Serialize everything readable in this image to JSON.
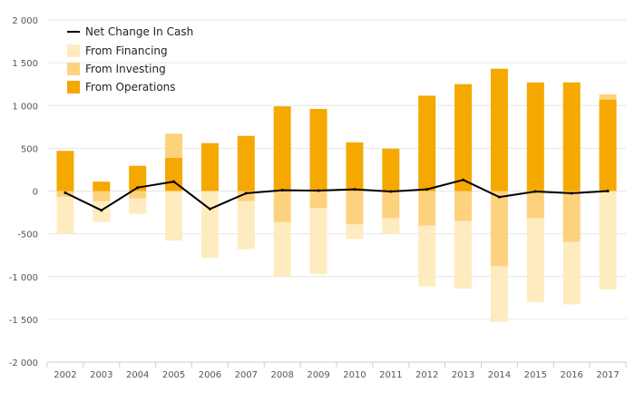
{
  "chart_data": {
    "type": "bar",
    "categories": [
      "2002",
      "2003",
      "2004",
      "2005",
      "2006",
      "2007",
      "2008",
      "2009",
      "2010",
      "2011",
      "2012",
      "2013",
      "2014",
      "2015",
      "2016",
      "2017"
    ],
    "series": [
      {
        "name": "From Operations",
        "kind": "bar",
        "color": "#F5A800",
        "values": [
          470,
          110,
          295,
          390,
          560,
          645,
          990,
          960,
          570,
          495,
          1115,
          1250,
          1430,
          1270,
          1270,
          1070
        ]
      },
      {
        "name": "From Investing",
        "kind": "bar",
        "color": "#FDD27E",
        "values": [
          -70,
          -120,
          -85,
          280,
          0,
          -120,
          -365,
          -200,
          -390,
          -320,
          -405,
          -350,
          -880,
          -320,
          -595,
          60
        ]
      },
      {
        "name": "From Financing",
        "kind": "bar",
        "color": "#FFEBC0",
        "values": [
          -430,
          -240,
          -180,
          -580,
          -780,
          -560,
          -635,
          -770,
          -170,
          -180,
          -710,
          -790,
          -650,
          -980,
          -730,
          -1150
        ]
      },
      {
        "name": "Net Change In Cash",
        "kind": "line",
        "color": "#000000",
        "values": [
          -20,
          -225,
          40,
          110,
          -210,
          -25,
          10,
          5,
          20,
          -5,
          20,
          130,
          -70,
          -5,
          -25,
          0
        ]
      }
    ],
    "ylim": [
      -2000,
      2000
    ],
    "y_ticks": [
      -2000,
      -1500,
      -1000,
      -500,
      0,
      500,
      1000,
      1500,
      2000
    ],
    "y_tick_labels": [
      "-2 000",
      "-1 500",
      "-1 000",
      "-500",
      "0",
      "500",
      "1 000",
      "1 500",
      "2 000"
    ],
    "grid": true,
    "legend_position": "top-left",
    "legend": [
      {
        "label": "Net Change In Cash",
        "symbol": "line",
        "color": "#000000"
      },
      {
        "label": "From Financing",
        "symbol": "box",
        "color": "#FFEBC0"
      },
      {
        "label": "From Investing",
        "symbol": "box",
        "color": "#FDD27E"
      },
      {
        "label": "From Operations",
        "symbol": "box",
        "color": "#F5A800"
      }
    ]
  }
}
